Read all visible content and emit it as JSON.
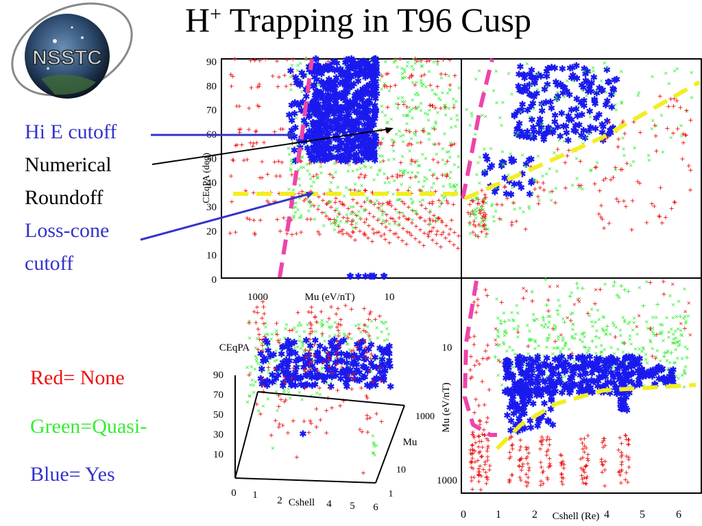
{
  "title": {
    "main": "H",
    "sup": "+",
    "rest": " Trapping in T96 Cusp"
  },
  "logo": {
    "text": "NSSTC"
  },
  "annotations": {
    "hi_e": "Hi E cutoff",
    "numerical": "Numerical",
    "roundoff": "Roundoff",
    "loss_cone": "Loss-cone",
    "cutoff": "cutoff"
  },
  "legend": {
    "red": "Red= None",
    "green": "Green=Quasi-",
    "blue": "Blue= Yes"
  },
  "colors": {
    "red": "#ee1111",
    "green": "#33ee33",
    "blue": "#1a1aee",
    "magenta": "#ee44aa",
    "yellow": "#f2ee22",
    "annotation_blue": "#3333cc"
  },
  "chart_data": [
    {
      "type": "scatter",
      "panel": "top-left",
      "xlabel": "Mu (eV/nT)",
      "ylabel": "CEqPA (deg)",
      "x_ticks": [
        "1000",
        "10"
      ],
      "y_ticks": [
        "90",
        "80",
        "70",
        "60",
        "50",
        "40",
        "30",
        "20",
        "10",
        "0"
      ],
      "ylim": [
        0,
        90
      ],
      "series": [
        {
          "name": "None",
          "color": "red"
        },
        {
          "name": "Quasi-",
          "color": "green"
        },
        {
          "name": "Yes",
          "color": "blue"
        }
      ]
    },
    {
      "type": "scatter",
      "panel": "top-right",
      "ylim": [
        0,
        90
      ],
      "series": [
        {
          "name": "None",
          "color": "red"
        },
        {
          "name": "Quasi-",
          "color": "green"
        },
        {
          "name": "Yes",
          "color": "blue"
        }
      ]
    },
    {
      "type": "scatter",
      "panel": "bottom-left-3d",
      "zlabel": "CEqPA",
      "xlabel": "Cshell",
      "ylabel": "Mu",
      "z_ticks": [
        "90",
        "70",
        "50",
        "30",
        "10"
      ],
      "x_ticks": [
        "0",
        "1",
        "2",
        "4",
        "5",
        "6"
      ],
      "y_ticks": [
        "1000",
        "10",
        "1"
      ]
    },
    {
      "type": "scatter",
      "panel": "bottom-right",
      "xlabel": "Cshell (Re)",
      "ylabel": "Mu (eV/nT)",
      "x_ticks": [
        "0",
        "1",
        "2",
        "4",
        "5",
        "6"
      ],
      "y_ticks": [
        "10",
        "1000"
      ]
    }
  ]
}
